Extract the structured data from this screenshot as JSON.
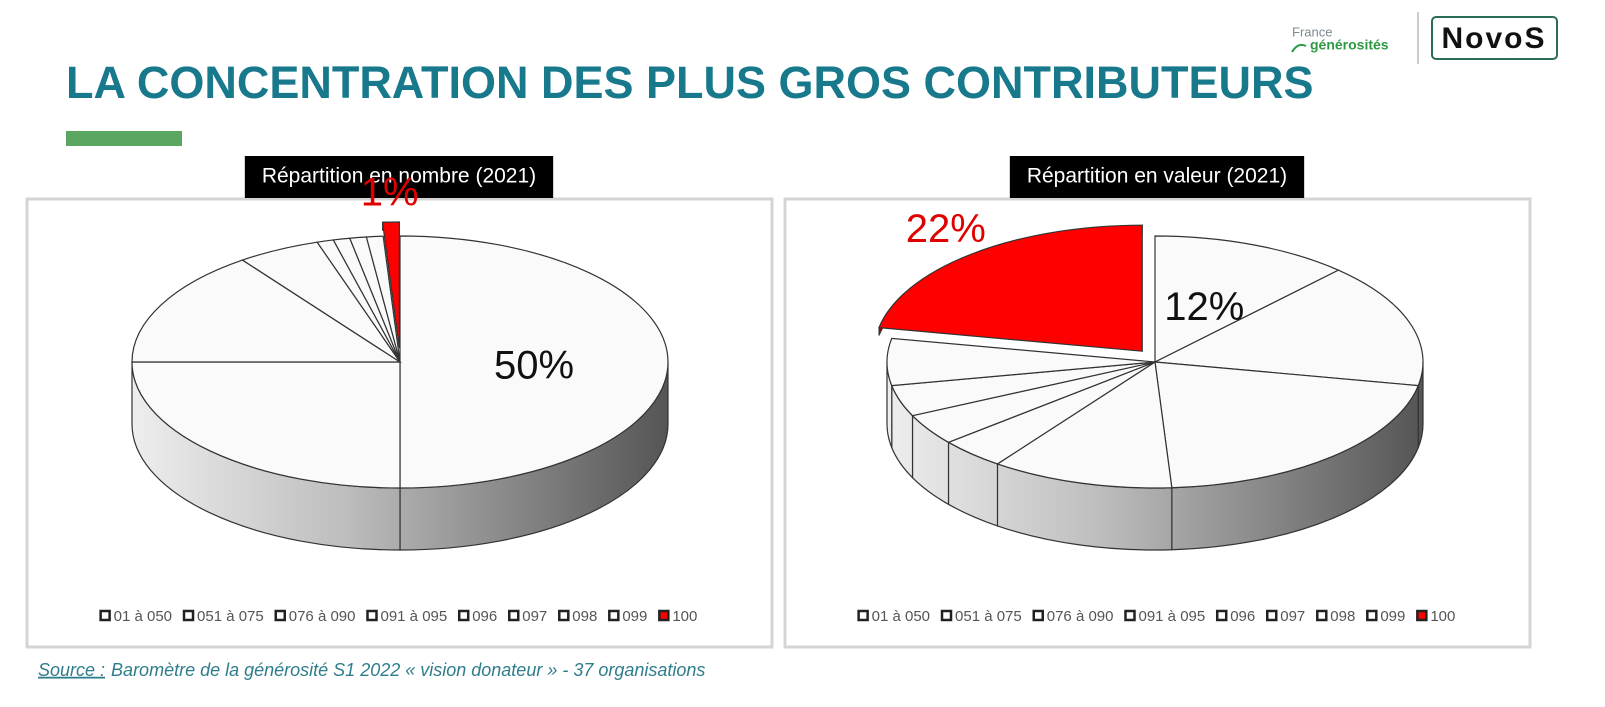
{
  "header": {
    "title": "LA CONCENTRATION DES PLUS GROS CONTRIBUTEURS"
  },
  "logos": {
    "france_line1": "France",
    "france_line2": "générosités",
    "novos": "NovoS"
  },
  "chart_data": [
    {
      "type": "pie",
      "title": "Répartition en nombre (2021)",
      "categories": [
        "01 à 050",
        "051 à 075",
        "076 à 090",
        "091 à 095",
        "096",
        "097",
        "098",
        "099",
        "100"
      ],
      "values": [
        50,
        25,
        15,
        5,
        1,
        1,
        1,
        1,
        1
      ],
      "value_labels": [
        "50%",
        null,
        null,
        null,
        null,
        null,
        null,
        null,
        "1%"
      ],
      "colors": [
        "#fafafa",
        "#fafafa",
        "#fafafa",
        "#fafafa",
        "#fafafa",
        "#fafafa",
        "#fafafa",
        "#fafafa",
        "#ff0000"
      ],
      "exploded": "100"
    },
    {
      "type": "pie",
      "title": "Répartition en valeur (2021)",
      "categories": [
        "01 à 050",
        "051 à 075",
        "076 à 090",
        "091 à 095",
        "096",
        "097",
        "098",
        "099",
        "100"
      ],
      "values": [
        12,
        16,
        21,
        11,
        4,
        4,
        4,
        6,
        22
      ],
      "value_labels": [
        "12%",
        null,
        null,
        null,
        null,
        null,
        null,
        null,
        "22%"
      ],
      "colors": [
        "#fafafa",
        "#fafafa",
        "#fafafa",
        "#fafafa",
        "#fafafa",
        "#fafafa",
        "#fafafa",
        "#fafafa",
        "#ff0000"
      ],
      "exploded": "100"
    }
  ],
  "source": {
    "label": "Source :",
    "text": "Baromètre de la générosité S1 2022 « vision donateur » - 37 organisations"
  }
}
